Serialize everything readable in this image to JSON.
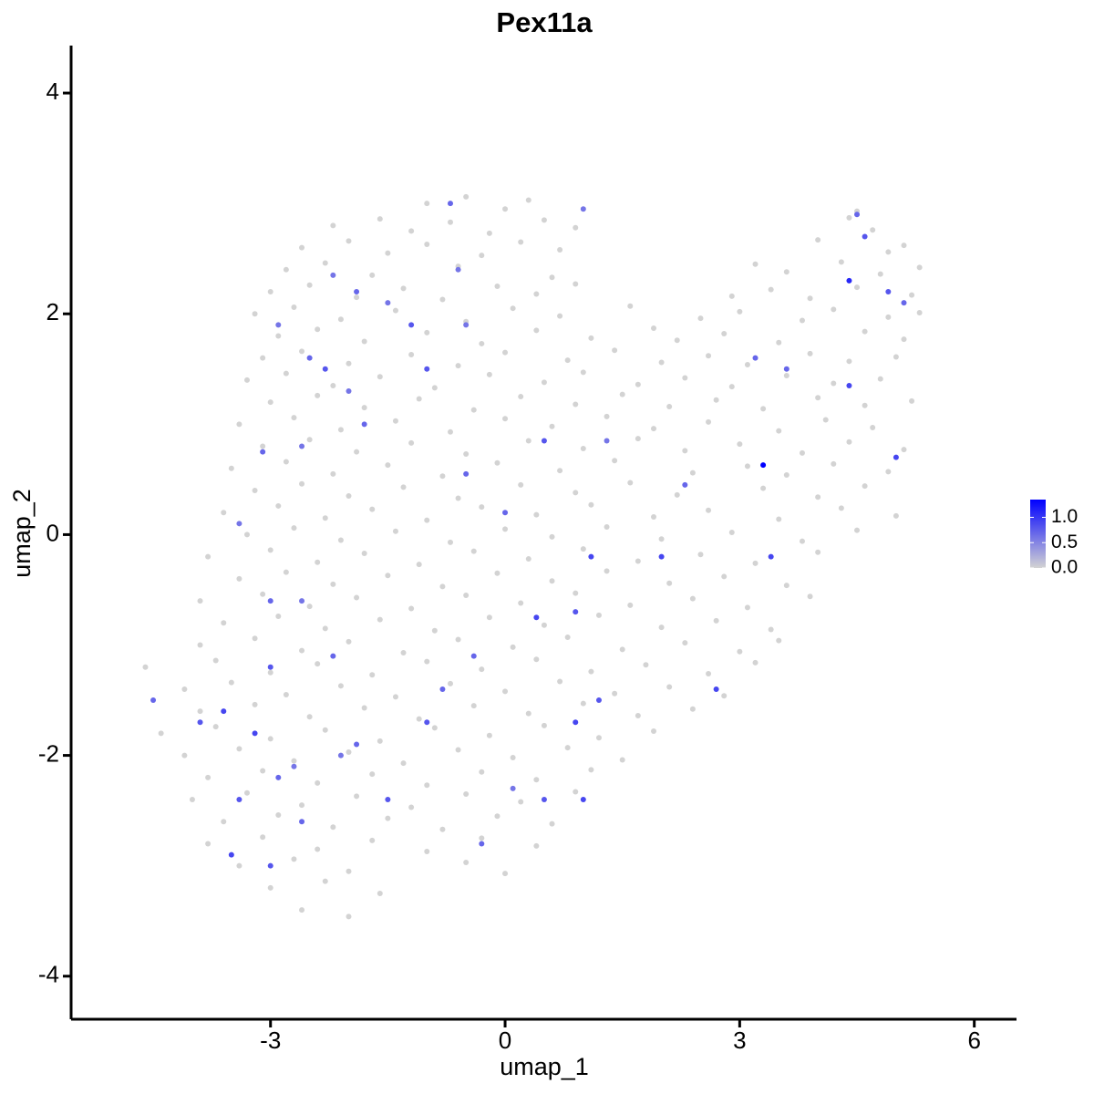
{
  "chart_data": {
    "type": "scatter",
    "title": "Pex11a",
    "x_label": "umap_1",
    "y_label": "umap_2",
    "xlim": [
      -5.55,
      6.54
    ],
    "ylim": [
      -4.39,
      4.43
    ],
    "xticks": [
      -3,
      0,
      3,
      6
    ],
    "yticks": [
      -4,
      -2,
      0,
      2,
      4
    ],
    "low_color": "#d3d3d3",
    "high_color": "#0000ff",
    "clim": [
      0,
      1.35
    ],
    "cticks": [
      {
        "value": 0,
        "label": "0.0"
      },
      {
        "value": 0.5,
        "label": "0.5"
      },
      {
        "value": 1,
        "label": "1.0"
      }
    ],
    "x": [
      -1.0,
      -0.5,
      0.0,
      0.3,
      4.5,
      -2.2,
      -1.6,
      -1.2,
      -0.7,
      -0.2,
      0.5,
      0.9,
      4.4,
      4.7,
      -2.6,
      -2.0,
      -1.5,
      -1.0,
      -0.3,
      0.2,
      0.7,
      4.0,
      4.9,
      5.1,
      -2.8,
      -2.3,
      -1.7,
      -0.6,
      0.6,
      3.2,
      3.6,
      4.3,
      4.8,
      5.3,
      -3.0,
      -2.5,
      -1.9,
      -1.3,
      -0.8,
      -0.1,
      0.4,
      0.9,
      2.9,
      3.4,
      3.9,
      4.5,
      5.2,
      -3.2,
      -2.7,
      -2.1,
      -1.4,
      -0.5,
      0.1,
      0.7,
      1.6,
      2.5,
      3.0,
      3.8,
      4.2,
      4.9,
      5.3,
      -2.9,
      -2.4,
      -1.8,
      -1.0,
      -0.3,
      0.4,
      1.1,
      1.9,
      2.2,
      2.8,
      3.5,
      4.6,
      5.1,
      -3.1,
      -2.6,
      -2.0,
      -1.2,
      -0.6,
      0.0,
      0.8,
      1.4,
      2.0,
      2.6,
      3.1,
      3.9,
      4.4,
      5.0,
      -3.3,
      -2.8,
      -2.2,
      -1.6,
      -0.9,
      -0.2,
      0.5,
      1.0,
      1.7,
      2.3,
      2.9,
      3.6,
      4.2,
      4.8,
      -3.0,
      -2.4,
      -1.8,
      -1.1,
      -0.4,
      0.2,
      0.9,
      1.5,
      2.1,
      2.7,
      3.3,
      4.0,
      4.6,
      5.2,
      -3.4,
      -2.7,
      -2.1,
      -1.4,
      -0.7,
      0.0,
      0.6,
      1.3,
      1.9,
      2.6,
      3.5,
      4.1,
      4.7,
      -3.1,
      -2.5,
      -1.9,
      -1.2,
      -0.5,
      0.3,
      1.0,
      1.7,
      2.3,
      3.0,
      3.8,
      4.4,
      5.1,
      -3.5,
      -2.8,
      -2.2,
      -1.5,
      -0.8,
      -0.1,
      0.7,
      1.4,
      2.4,
      3.1,
      3.6,
      4.2,
      4.9,
      -3.2,
      -2.6,
      -2.0,
      -1.3,
      -0.6,
      0.2,
      0.9,
      1.6,
      2.2,
      3.3,
      4.0,
      4.6,
      -3.6,
      -2.9,
      -2.3,
      -1.7,
      -1.0,
      -0.3,
      0.4,
      1.1,
      1.9,
      2.6,
      3.5,
      4.3,
      5.0,
      -3.3,
      -2.7,
      -2.1,
      -1.4,
      -0.7,
      0.0,
      0.6,
      1.3,
      2.0,
      2.9,
      3.8,
      4.5,
      -3.8,
      -3.0,
      -2.4,
      -1.8,
      -1.1,
      -0.4,
      0.3,
      1.0,
      1.7,
      2.5,
      3.2,
      4.0,
      -3.4,
      -2.8,
      -2.2,
      -1.5,
      -0.8,
      -0.1,
      0.6,
      1.3,
      2.1,
      2.8,
      3.6,
      -3.9,
      -3.1,
      -2.5,
      -1.9,
      -1.2,
      -0.5,
      0.2,
      0.9,
      1.6,
      2.4,
      3.1,
      3.9,
      -3.6,
      -2.9,
      -2.3,
      -1.6,
      -0.9,
      -0.2,
      0.5,
      1.2,
      2.0,
      2.7,
      3.4,
      -3.9,
      -3.2,
      -2.6,
      -2.0,
      -1.3,
      -0.6,
      0.1,
      0.8,
      1.5,
      2.3,
      3.0,
      3.5,
      -4.6,
      -3.7,
      -3.0,
      -2.4,
      -1.7,
      -1.0,
      -0.3,
      0.4,
      1.1,
      1.8,
      2.6,
      3.2,
      -4.1,
      -3.5,
      -2.8,
      -2.1,
      -1.4,
      -0.7,
      0.0,
      0.7,
      1.4,
      2.1,
      2.8,
      -3.9,
      -3.2,
      -2.5,
      -1.8,
      -1.1,
      -0.4,
      0.3,
      1.0,
      1.7,
      2.4,
      -4.4,
      -3.7,
      -3.0,
      -2.3,
      -1.6,
      -0.9,
      -0.2,
      0.5,
      1.2,
      1.9,
      -4.1,
      -3.4,
      -2.7,
      -2.0,
      -1.3,
      -0.6,
      0.1,
      0.8,
      1.5,
      -3.8,
      -3.1,
      -2.4,
      -1.7,
      -1.0,
      -0.3,
      0.4,
      1.1,
      -4.0,
      -3.3,
      -2.6,
      -1.9,
      -1.2,
      -0.5,
      0.2,
      0.9,
      -3.6,
      -2.9,
      -2.2,
      -1.5,
      -0.8,
      -0.1,
      0.6,
      -3.8,
      -3.1,
      -2.4,
      -1.7,
      -1.0,
      -0.3,
      0.4,
      -3.4,
      -2.7,
      -2.0,
      -0.5,
      0.0,
      -3.0,
      -2.3,
      -1.6,
      -2.6,
      -2.0,
      -2.9,
      -2.5,
      -2.2,
      -1.9,
      -1.5,
      -1.2,
      -0.6,
      -0.7,
      -1.0,
      -2.3,
      -2.0,
      -1.8,
      -2.6,
      -3.1,
      -3.4,
      -3.0,
      -2.6,
      -2.2,
      -3.0,
      -3.6,
      -3.9,
      -4.5,
      -3.2,
      -2.9,
      -3.4,
      -3.5,
      -3.0,
      -2.6,
      -2.1,
      -1.5,
      -1.0,
      -0.8,
      -0.4,
      -0.3,
      0.1,
      0.5,
      0.9,
      1.0,
      1.2,
      0.9,
      0.4,
      1.1,
      2.0,
      0.0,
      -0.5,
      0.5,
      1.3,
      2.3,
      3.3,
      3.2,
      3.6,
      4.4,
      4.4,
      4.9,
      5.1,
      4.6,
      4.5,
      5.0,
      3.4,
      2.7,
      1.0,
      -0.5,
      -2.7,
      -1.9
    ],
    "values": [
      3.0,
      3.06,
      2.95,
      3.03,
      2.93,
      2.8,
      2.86,
      2.75,
      2.83,
      2.73,
      2.85,
      2.78,
      2.87,
      2.76,
      2.6,
      2.66,
      2.55,
      2.63,
      2.53,
      2.65,
      2.58,
      2.67,
      2.56,
      2.62,
      2.4,
      2.46,
      2.35,
      2.43,
      2.33,
      2.45,
      2.38,
      2.47,
      2.36,
      2.42,
      2.2,
      2.26,
      2.15,
      2.23,
      2.13,
      2.25,
      2.18,
      2.27,
      2.16,
      2.22,
      2.14,
      2.24,
      2.17,
      2.0,
      2.06,
      1.95,
      2.03,
      1.93,
      2.05,
      1.98,
      2.07,
      1.96,
      2.02,
      1.94,
      2.04,
      1.97,
      2.01,
      1.8,
      1.86,
      1.75,
      1.83,
      1.73,
      1.85,
      1.78,
      1.87,
      1.76,
      1.82,
      1.74,
      1.84,
      1.77,
      1.6,
      1.66,
      1.55,
      1.63,
      1.53,
      1.65,
      1.58,
      1.67,
      1.56,
      1.62,
      1.54,
      1.64,
      1.57,
      1.61,
      1.4,
      1.46,
      1.35,
      1.43,
      1.33,
      1.45,
      1.38,
      1.47,
      1.36,
      1.42,
      1.34,
      1.44,
      1.37,
      1.41,
      1.2,
      1.26,
      1.15,
      1.23,
      1.13,
      1.25,
      1.18,
      1.27,
      1.16,
      1.22,
      1.14,
      1.24,
      1.17,
      1.21,
      1.0,
      1.06,
      0.95,
      1.03,
      0.93,
      1.05,
      0.98,
      1.07,
      0.96,
      1.02,
      0.94,
      1.04,
      0.97,
      0.8,
      0.86,
      0.75,
      0.83,
      0.73,
      0.85,
      0.78,
      0.87,
      0.76,
      0.82,
      0.74,
      0.84,
      0.77,
      0.6,
      0.66,
      0.55,
      0.63,
      0.53,
      0.65,
      0.58,
      0.67,
      0.56,
      0.62,
      0.54,
      0.64,
      0.57,
      0.4,
      0.46,
      0.35,
      0.43,
      0.33,
      0.45,
      0.38,
      0.47,
      0.36,
      0.42,
      0.34,
      0.44,
      0.2,
      0.26,
      0.15,
      0.23,
      0.13,
      0.25,
      0.18,
      0.27,
      0.16,
      0.22,
      0.14,
      0.24,
      0.17,
      0.0,
      0.06,
      -0.05,
      0.03,
      -0.07,
      0.05,
      -0.02,
      0.07,
      -0.04,
      0.02,
      -0.06,
      0.04,
      -0.2,
      -0.14,
      -0.25,
      -0.17,
      -0.27,
      -0.15,
      -0.22,
      -0.13,
      -0.24,
      -0.18,
      -0.26,
      -0.16,
      -0.4,
      -0.34,
      -0.45,
      -0.37,
      -0.47,
      -0.35,
      -0.42,
      -0.33,
      -0.44,
      -0.38,
      -0.46,
      -0.6,
      -0.54,
      -0.65,
      -0.57,
      -0.67,
      -0.55,
      -0.62,
      -0.53,
      -0.64,
      -0.58,
      -0.66,
      -0.56,
      -0.8,
      -0.74,
      -0.85,
      -0.77,
      -0.87,
      -0.75,
      -0.82,
      -0.73,
      -0.84,
      -0.78,
      -0.86,
      -1.0,
      -0.94,
      -1.05,
      -0.97,
      -1.07,
      -0.95,
      -1.02,
      -0.93,
      -1.04,
      -0.98,
      -1.06,
      -0.96,
      -1.2,
      -1.14,
      -1.25,
      -1.17,
      -1.27,
      -1.15,
      -1.22,
      -1.13,
      -1.24,
      -1.18,
      -1.26,
      -1.16,
      -1.4,
      -1.34,
      -1.45,
      -1.37,
      -1.47,
      -1.35,
      -1.42,
      -1.33,
      -1.44,
      -1.38,
      -1.46,
      -1.6,
      -1.54,
      -1.65,
      -1.57,
      -1.67,
      -1.55,
      -1.62,
      -1.53,
      -1.64,
      -1.58,
      -1.8,
      -1.74,
      -1.85,
      -1.77,
      -1.87,
      -1.75,
      -1.82,
      -1.73,
      -1.84,
      -1.78,
      -2.0,
      -1.94,
      -2.05,
      -1.97,
      -2.07,
      -1.95,
      -2.02,
      -1.93,
      -2.04,
      -2.2,
      -2.14,
      -2.25,
      -2.17,
      -2.27,
      -2.15,
      -2.22,
      -2.13,
      -2.4,
      -2.34,
      -2.45,
      -2.37,
      -2.47,
      -2.35,
      -2.42,
      -2.33,
      -2.6,
      -2.54,
      -2.65,
      -2.57,
      -2.67,
      -2.55,
      -2.62,
      -2.8,
      -2.74,
      -2.85,
      -2.77,
      -2.87,
      -2.75,
      -2.82,
      -3.0,
      -2.94,
      -3.05,
      -2.97,
      -3.07,
      -3.2,
      -3.14,
      -3.25,
      -3.4,
      -3.46,
      1.9,
      1.6,
      2.35,
      2.2,
      2.1,
      1.9,
      2.4,
      3.0,
      1.5,
      1.5,
      1.3,
      1.0,
      0.8,
      0.75,
      0.1,
      -0.6,
      -0.6,
      -1.1,
      -1.2,
      -1.6,
      -1.7,
      -1.5,
      -1.8,
      -2.2,
      -2.4,
      -2.9,
      -3.0,
      -2.6,
      -2.0,
      -2.4,
      -1.7,
      -1.4,
      -1.1,
      -2.8,
      -2.3,
      -2.4,
      -1.7,
      -2.4,
      -1.5,
      -0.7,
      -0.75,
      -0.2,
      -0.2,
      0.2,
      0.55,
      0.85,
      0.85,
      0.45,
      0.63,
      1.6,
      1.5,
      1.35,
      2.3,
      2.2,
      2.1,
      2.7,
      2.9,
      0.7,
      -0.2,
      -1.4,
      2.95,
      1.9,
      -2.1,
      -1.9
    ],
    "expression": [
      0,
      0,
      0,
      0,
      0,
      0,
      0,
      0,
      0,
      0,
      0,
      0,
      0,
      0,
      0,
      0,
      0,
      0,
      0,
      0,
      0,
      0,
      0,
      0,
      0,
      0,
      0,
      0,
      0,
      0,
      0,
      0,
      0,
      0,
      0,
      0,
      0,
      0,
      0,
      0,
      0,
      0,
      0,
      0,
      0,
      0,
      0,
      0,
      0,
      0,
      0,
      0,
      0,
      0,
      0,
      0,
      0,
      0,
      0,
      0,
      0,
      0,
      0,
      0,
      0,
      0,
      0,
      0,
      0,
      0,
      0,
      0,
      0,
      0,
      0,
      0,
      0,
      0,
      0,
      0,
      0,
      0,
      0,
      0,
      0,
      0,
      0,
      0,
      0,
      0,
      0,
      0,
      0,
      0,
      0,
      0,
      0,
      0,
      0,
      0,
      0,
      0,
      0,
      0,
      0,
      0,
      0,
      0,
      0,
      0,
      0,
      0,
      0,
      0,
      0,
      0,
      0,
      0,
      0,
      0,
      0,
      0,
      0,
      0,
      0,
      0,
      0,
      0,
      0,
      0,
      0,
      0,
      0,
      0,
      0,
      0,
      0,
      0,
      0,
      0,
      0,
      0,
      0,
      0,
      0,
      0,
      0,
      0,
      0,
      0,
      0,
      0,
      0,
      0,
      0,
      0,
      0,
      0,
      0,
      0,
      0,
      0,
      0,
      0,
      0,
      0,
      0,
      0,
      0,
      0,
      0,
      0,
      0,
      0,
      0,
      0,
      0,
      0,
      0,
      0,
      0,
      0,
      0,
      0,
      0,
      0,
      0,
      0,
      0,
      0,
      0,
      0,
      0,
      0,
      0,
      0,
      0,
      0,
      0,
      0,
      0,
      0,
      0,
      0,
      0,
      0,
      0,
      0,
      0,
      0,
      0,
      0,
      0,
      0,
      0,
      0,
      0,
      0,
      0,
      0,
      0,
      0,
      0,
      0,
      0,
      0,
      0,
      0,
      0,
      0,
      0,
      0,
      0,
      0,
      0,
      0,
      0,
      0,
      0,
      0,
      0,
      0,
      0,
      0,
      0,
      0,
      0,
      0,
      0,
      0,
      0,
      0,
      0,
      0,
      0,
      0,
      0,
      0,
      0,
      0,
      0,
      0,
      0,
      0,
      0,
      0,
      0,
      0,
      0,
      0,
      0,
      0,
      0,
      0,
      0,
      0,
      0,
      0,
      0,
      0,
      0,
      0,
      0,
      0,
      0,
      0,
      0,
      0,
      0,
      0,
      0,
      0,
      0,
      0,
      0,
      0,
      0,
      0,
      0,
      0,
      0,
      0,
      0,
      0,
      0,
      0,
      0,
      0,
      0,
      0,
      0,
      0,
      0,
      0,
      0,
      0,
      0,
      0,
      0,
      0,
      0,
      0,
      0,
      0,
      0,
      0,
      0,
      0,
      0,
      0,
      0,
      0,
      0,
      0,
      0,
      0,
      0,
      0,
      0,
      0,
      0,
      0,
      0.6,
      0.7,
      0.6,
      0.7,
      0.6,
      0.8,
      0.6,
      0.7,
      0.8,
      0.8,
      0.6,
      0.7,
      0.6,
      0.7,
      0.6,
      0.7,
      0.6,
      0.7,
      0.8,
      0.9,
      0.8,
      0.7,
      0.9,
      0.7,
      0.8,
      0.9,
      0.8,
      0.7,
      0.6,
      0.8,
      0.8,
      0.7,
      0.7,
      0.7,
      0.6,
      0.8,
      0.9,
      0.9,
      0.8,
      0.8,
      0.9,
      0.9,
      0.9,
      0.7,
      0.7,
      0.8,
      0.6,
      0.7,
      1.35,
      0.7,
      0.7,
      0.9,
      1.1,
      0.8,
      0.7,
      0.8,
      0.7,
      0.9,
      0.9,
      0.9,
      0.6,
      0.6,
      0.6,
      0.7
    ]
  }
}
